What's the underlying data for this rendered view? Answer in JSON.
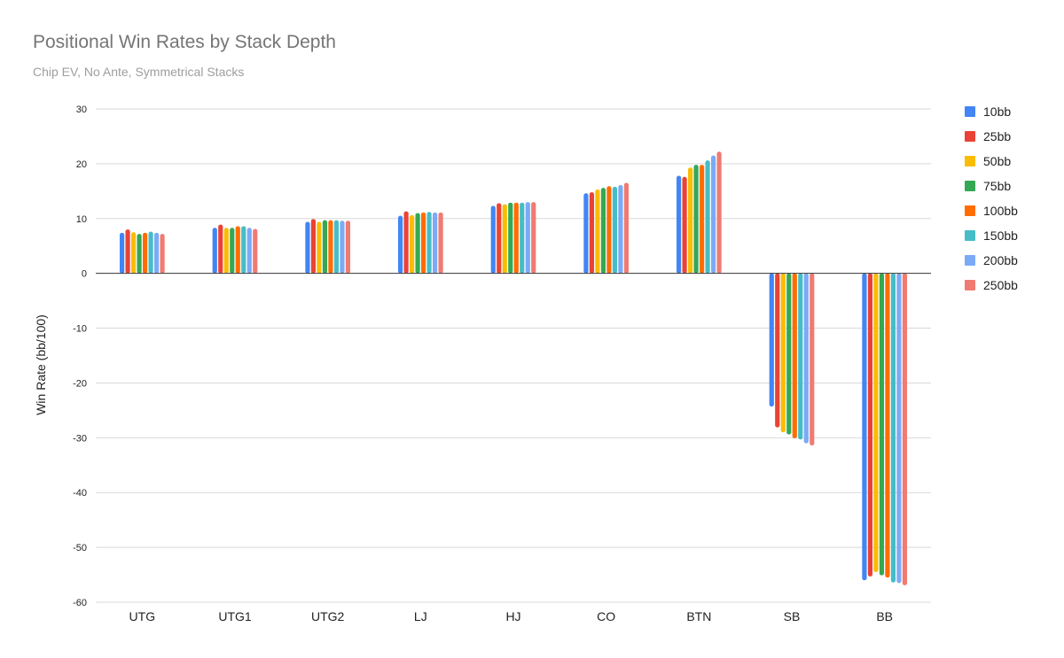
{
  "chart_data": {
    "type": "bar",
    "title": "Positional Win Rates by Stack Depth",
    "subtitle": "Chip EV, No Ante, Symmetrical Stacks",
    "xlabel": "",
    "ylabel": "Win Rate (bb/100)",
    "ylim": [
      -60,
      30
    ],
    "yticks": [
      30,
      20,
      10,
      0,
      -10,
      -20,
      -30,
      -40,
      -50,
      -60
    ],
    "grid": true,
    "legend_position": "right",
    "categories": [
      "UTG",
      "UTG1",
      "UTG2",
      "LJ",
      "HJ",
      "CO",
      "BTN",
      "SB",
      "BB"
    ],
    "series": [
      {
        "name": "10bb",
        "color": "#4285f4",
        "values": [
          7.4,
          8.3,
          9.4,
          10.5,
          12.3,
          14.6,
          17.8,
          -24.3,
          -56.0
        ]
      },
      {
        "name": "25bb",
        "color": "#ea4335",
        "values": [
          8.0,
          8.9,
          9.9,
          11.3,
          12.8,
          14.8,
          17.6,
          -28.1,
          -55.3
        ]
      },
      {
        "name": "50bb",
        "color": "#fbbc04",
        "values": [
          7.5,
          8.3,
          9.4,
          10.6,
          12.6,
          15.3,
          19.3,
          -29.0,
          -54.5
        ]
      },
      {
        "name": "75bb",
        "color": "#34a853",
        "values": [
          7.2,
          8.3,
          9.7,
          11.0,
          12.9,
          15.6,
          19.8,
          -29.4,
          -55.1
        ]
      },
      {
        "name": "100bb",
        "color": "#ff6d01",
        "values": [
          7.4,
          8.6,
          9.7,
          11.1,
          12.9,
          15.9,
          19.8,
          -30.1,
          -55.5
        ]
      },
      {
        "name": "150bb",
        "color": "#46bdc6",
        "values": [
          7.6,
          8.6,
          9.7,
          11.2,
          12.9,
          15.8,
          20.6,
          -30.3,
          -56.4
        ]
      },
      {
        "name": "200bb",
        "color": "#7baaf7",
        "values": [
          7.4,
          8.3,
          9.6,
          11.1,
          13.0,
          16.1,
          21.5,
          -31.0,
          -56.5
        ]
      },
      {
        "name": "250bb",
        "color": "#f07b72",
        "values": [
          7.2,
          8.1,
          9.6,
          11.1,
          13.0,
          16.5,
          22.2,
          -31.4,
          -56.9
        ]
      }
    ]
  }
}
